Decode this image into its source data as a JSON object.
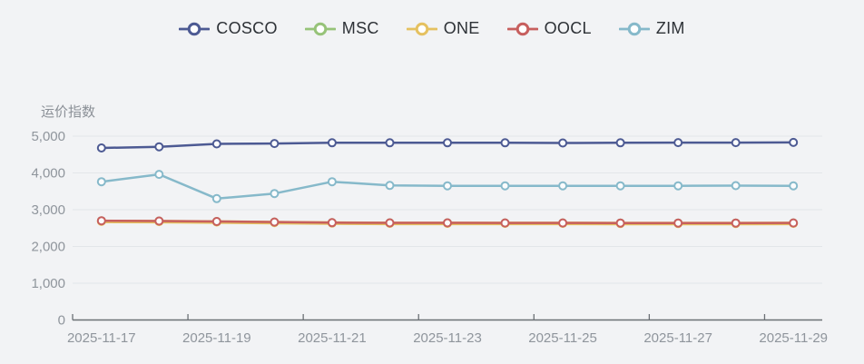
{
  "page": {
    "background": "#f2f3f5"
  },
  "legend": {
    "items": [
      {
        "label": "COSCO",
        "color": "#4d5a93"
      },
      {
        "label": "MSC",
        "color": "#97c379"
      },
      {
        "label": "ONE",
        "color": "#e5c160"
      },
      {
        "label": "OOCL",
        "color": "#c75f5e"
      },
      {
        "label": "ZIM",
        "color": "#86b9ca"
      }
    ]
  },
  "chart_data": {
    "type": "line",
    "title": "",
    "xlabel": "",
    "ylabel": "运价指数",
    "ylim": [
      0,
      5000
    ],
    "grid": true,
    "legend_position": "top",
    "y_ticks": [
      "0",
      "1,000",
      "2,000",
      "3,000",
      "4,000",
      "5,000"
    ],
    "x_tick_labels": [
      "2025-11-17",
      "2025-11-19",
      "2025-11-21",
      "2025-11-23",
      "2025-11-25",
      "2025-11-27",
      "2025-11-29"
    ],
    "categories": [
      "2025-11-17",
      "2025-11-18",
      "2025-11-19",
      "2025-11-20",
      "2025-11-21",
      "2025-11-22",
      "2025-11-23",
      "2025-11-24",
      "2025-11-25",
      "2025-11-26",
      "2025-11-27",
      "2025-11-28",
      "2025-11-29"
    ],
    "series": [
      {
        "name": "COSCO",
        "color": "#4d5a93",
        "line_width": 2.5,
        "values": [
          4680,
          4710,
          4790,
          4800,
          4820,
          4820,
          4820,
          4820,
          4815,
          4820,
          4825,
          4825,
          4830
        ]
      },
      {
        "name": "MSC",
        "color": "#97c379",
        "line_width": 2,
        "values": [
          2700,
          2692,
          2680,
          2665,
          2648,
          2642,
          2642,
          2640,
          2640,
          2636,
          2636,
          2636,
          2640
        ]
      },
      {
        "name": "ONE",
        "color": "#e5c160",
        "line_width": 4,
        "values": [
          2682,
          2676,
          2664,
          2650,
          2634,
          2628,
          2628,
          2626,
          2626,
          2622,
          2622,
          2622,
          2626
        ]
      },
      {
        "name": "OOCL",
        "color": "#c75f5e",
        "line_width": 2.5,
        "values": [
          2700,
          2692,
          2680,
          2665,
          2648,
          2642,
          2642,
          2640,
          2640,
          2636,
          2636,
          2636,
          2640
        ]
      },
      {
        "name": "ZIM",
        "color": "#86b9ca",
        "line_width": 2.5,
        "values": [
          3760,
          3960,
          3300,
          3440,
          3760,
          3660,
          3650,
          3650,
          3650,
          3650,
          3650,
          3655,
          3650
        ]
      }
    ]
  }
}
